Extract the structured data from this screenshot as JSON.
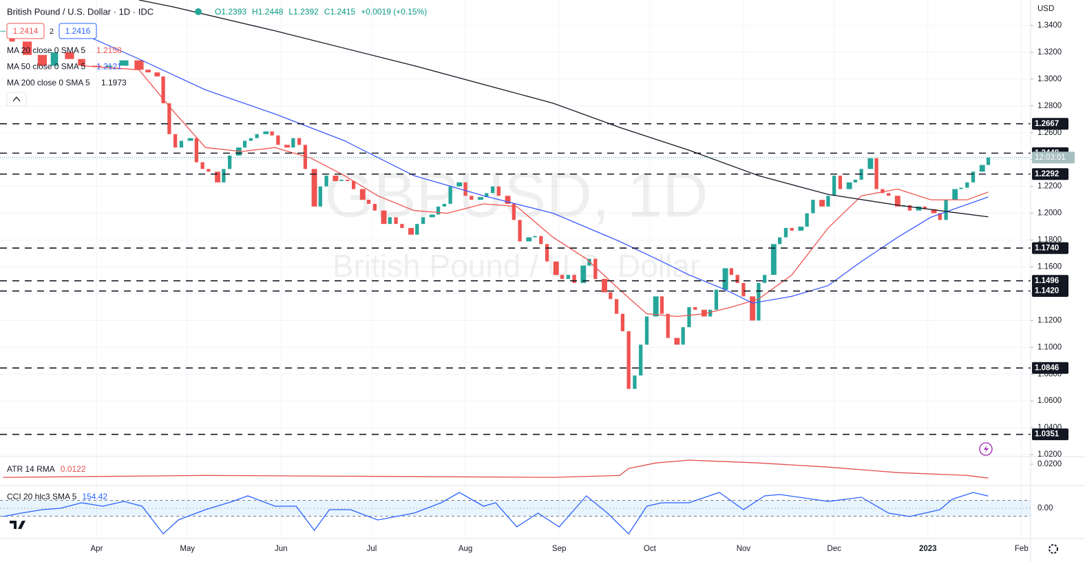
{
  "chart_data": [
    {
      "type": "candlestick",
      "title": "British Pound / U.S. Dollar · 1D · IDC",
      "ohlc_legend": [
        "O1.2393",
        "H1.2448",
        "L1.2392",
        "C1.2415",
        "+0.0019 (+0.15%)"
      ],
      "bid": "1.2414",
      "spread": "2",
      "ask": "1.2416",
      "watermark": [
        "GBPUSD, 1D",
        "British Pound / U.S. Dollar"
      ],
      "currency": "USD",
      "countdown": "12:03:01",
      "up_color": "#26a69a",
      "down_color": "#ef5350",
      "x": [
        0,
        3,
        8,
        13,
        17,
        22,
        26,
        31,
        35,
        40,
        45,
        48,
        51,
        53,
        55,
        57,
        59,
        62,
        64,
        66,
        68,
        71,
        73,
        75,
        78,
        80,
        82,
        84,
        87,
        89,
        91,
        94,
        96,
        98,
        100,
        103,
        105,
        107,
        110,
        112,
        114,
        116,
        119,
        121,
        123,
        126,
        128,
        130,
        132,
        135,
        137,
        139,
        142,
        144,
        146,
        148,
        151,
        153,
        155,
        158,
        160,
        162,
        164,
        167,
        169,
        171,
        174,
        176,
        178,
        180,
        183,
        185,
        187,
        189,
        192,
        194,
        196,
        199,
        201,
        203,
        205,
        207,
        209,
        211,
        213,
        216,
        218,
        220,
        223,
        225,
        227,
        229,
        232,
        234,
        236,
        239,
        241,
        243,
        245,
        248,
        250,
        252,
        255,
        257,
        259,
        261,
        264,
        266,
        268,
        271,
        273,
        275,
        277,
        280,
        282,
        284,
        287,
        289,
        291,
        293,
        296,
        298,
        300,
        303,
        305,
        308,
        310,
        312,
        315,
        317,
        319,
        321,
        324,
        326
      ],
      "values": [
        1.336,
        1.328,
        1.318,
        1.31,
        1.32,
        1.315,
        1.31,
        1.309,
        1.31,
        1.314,
        1.307,
        1.305,
        1.302,
        1.282,
        1.259,
        1.249,
        1.254,
        1.256,
        1.238,
        1.233,
        1.231,
        1.223,
        1.233,
        1.243,
        1.249,
        1.254,
        1.256,
        1.259,
        1.261,
        1.258,
        1.251,
        1.249,
        1.256,
        1.251,
        1.233,
        1.205,
        1.22,
        1.228,
        1.224,
        1.225,
        1.224,
        1.218,
        1.21,
        1.207,
        1.202,
        1.192,
        1.197,
        1.192,
        1.189,
        1.184,
        1.192,
        1.197,
        1.199,
        1.205,
        1.207,
        1.22,
        1.223,
        1.213,
        1.21,
        1.212,
        1.215,
        1.22,
        1.213,
        1.207,
        1.195,
        1.179,
        1.182,
        1.183,
        1.177,
        1.164,
        1.154,
        1.151,
        1.154,
        1.148,
        1.161,
        1.166,
        1.151,
        1.141,
        1.136,
        1.125,
        1.112,
        1.069,
        1.079,
        1.102,
        1.123,
        1.138,
        1.125,
        1.107,
        1.102,
        1.115,
        1.13,
        1.128,
        1.123,
        1.128,
        1.143,
        1.159,
        1.154,
        1.148,
        1.138,
        1.12,
        1.148,
        1.154,
        1.177,
        1.182,
        1.189,
        1.187,
        1.19,
        1.2,
        1.21,
        1.205,
        1.213,
        1.228,
        1.218,
        1.223,
        1.225,
        1.233,
        1.241,
        1.218,
        1.215,
        1.213,
        1.205,
        1.206,
        1.202,
        1.205,
        1.203,
        1.2,
        1.195,
        1.21,
        1.218,
        1.219,
        1.223,
        1.231,
        1.236,
        1.2415
      ],
      "series": [
        {
          "name": "MA 20 close 0 SMA 5",
          "color": "#ef5350",
          "x": [
            26,
            45,
            56,
            67,
            79,
            90,
            102,
            113,
            124,
            136,
            147,
            159,
            170,
            182,
            193,
            204,
            213,
            223,
            232,
            241,
            250,
            261,
            273,
            284,
            296,
            307,
            319,
            326
          ],
          "values": [
            1.31,
            1.307,
            1.277,
            1.249,
            1.246,
            1.249,
            1.241,
            1.228,
            1.213,
            1.202,
            1.2,
            1.207,
            1.205,
            1.182,
            1.166,
            1.143,
            1.125,
            1.123,
            1.125,
            1.13,
            1.136,
            1.154,
            1.189,
            1.213,
            1.218,
            1.21,
            1.21,
            1.2158
          ]
        },
        {
          "name": "MA 50 close 0 SMA 5",
          "color": "#3d5afe",
          "x": [
            22,
            45,
            67,
            90,
            113,
            136,
            159,
            182,
            204,
            218,
            227,
            239,
            248,
            261,
            273,
            284,
            296,
            307,
            326
          ],
          "values": [
            1.338,
            1.315,
            1.292,
            1.274,
            1.254,
            1.228,
            1.213,
            1.2,
            1.179,
            1.164,
            1.154,
            1.143,
            1.133,
            1.138,
            1.146,
            1.164,
            1.182,
            1.197,
            1.2121
          ]
        },
        {
          "name": "MA 200 close 0 SMA 5",
          "color": "#131722",
          "x": [
            45,
            56,
            90,
            136,
            182,
            204,
            227,
            250,
            273,
            296,
            326
          ],
          "values": [
            1.359,
            1.354,
            1.336,
            1.31,
            1.282,
            1.264,
            1.247,
            1.228,
            1.214,
            1.206,
            1.1973
          ]
        }
      ],
      "levels": [
        1.2667,
        1.2448,
        1.2292,
        {
          "value": 1.174,
          "label": "1.1740"
        },
        1.1496,
        {
          "value": 1.142,
          "label": "1.1420"
        },
        1.0846,
        1.0351
      ],
      "xlim": [
        -1,
        340
      ],
      "ylim": [
        1.0185,
        1.359
      ],
      "xticks": [
        {
          "value": 31,
          "label": "Apr"
        },
        {
          "value": 61,
          "label": "May"
        },
        {
          "value": 92,
          "label": "Jun"
        },
        {
          "value": 122,
          "label": "Jul"
        },
        {
          "value": 153,
          "label": "Aug"
        },
        {
          "value": 184,
          "label": "Sep"
        },
        {
          "value": 214,
          "label": "Oct"
        },
        {
          "value": 245,
          "label": "Nov"
        },
        {
          "value": 275,
          "label": "Dec"
        },
        {
          "value": 306,
          "label": "2023"
        },
        {
          "value": 337,
          "label": "Feb"
        }
      ],
      "yticks": [
        {
          "value": 1.34,
          "label": "1.3400"
        },
        {
          "value": 1.32,
          "label": "1.3200"
        },
        {
          "value": 1.3,
          "label": "1.3000"
        },
        {
          "value": 1.28,
          "label": "1.2800"
        },
        {
          "value": 1.26,
          "label": "1.2600"
        },
        {
          "value": 1.24,
          "label": "1.2400"
        },
        {
          "value": 1.22,
          "label": "1.2200"
        },
        {
          "value": 1.2,
          "label": "1.2000"
        },
        {
          "value": 1.18,
          "label": "1.1800"
        },
        {
          "value": 1.16,
          "label": "1.1600"
        },
        {
          "value": 1.14,
          "label": "1.1400"
        },
        {
          "value": 1.12,
          "label": "1.1200"
        },
        {
          "value": 1.1,
          "label": "1.1000"
        },
        {
          "value": 1.08,
          "label": "1.0800"
        },
        {
          "value": 1.06,
          "label": "1.0600"
        },
        {
          "value": 1.04,
          "label": "1.0400"
        },
        {
          "value": 1.02,
          "label": "1.0200"
        }
      ],
      "grid": true
    },
    {
      "type": "line",
      "series": [
        {
          "name": "ATR 14 RMA",
          "color": "#e04e4e",
          "x": [
            0,
            67,
            182,
            204,
            207,
            216,
            227,
            250,
            273,
            296,
            319,
            326
          ],
          "values": [
            0.0126,
            0.0137,
            0.0126,
            0.0137,
            0.0176,
            0.0207,
            0.0223,
            0.0207,
            0.0184,
            0.0153,
            0.0137,
            0.0122
          ]
        }
      ],
      "xlim": [
        -1,
        340
      ],
      "ylim": [
        0.008,
        0.0235
      ],
      "yticks": [
        {
          "value": 0.02,
          "label": "0.0200"
        }
      ]
    },
    {
      "type": "line",
      "series": [
        {
          "name": "CCI 20 hlc3 SMA 5",
          "color": "#2962ff",
          "x": [
            0,
            6,
            13,
            19,
            26,
            33,
            40,
            46,
            53,
            58,
            67,
            76,
            81,
            90,
            97,
            103,
            108,
            115,
            124,
            136,
            145,
            151,
            159,
            163,
            170,
            177,
            184,
            193,
            200,
            207,
            213,
            218,
            227,
            237,
            245,
            252,
            257,
            273,
            284,
            293,
            300,
            310,
            314,
            321,
            326
          ],
          "values": [
            -104,
            -61,
            -17,
            0,
            70,
            26,
            87,
            26,
            -322,
            -148,
            -17,
            87,
            157,
            26,
            26,
            -278,
            -17,
            -17,
            -148,
            -61,
            70,
            200,
            26,
            70,
            -235,
            -61,
            -235,
            157,
            -61,
            -322,
            26,
            70,
            70,
            200,
            -17,
            157,
            174,
            87,
            139,
            -61,
            -104,
            -17,
            113,
            200,
            154.42
          ]
        }
      ],
      "band": [
        -100,
        100
      ],
      "xlim": [
        -1,
        340
      ],
      "ylim": [
        -365,
        287
      ],
      "yticks": [
        {
          "value": 0,
          "label": "0.00"
        }
      ]
    }
  ]
}
